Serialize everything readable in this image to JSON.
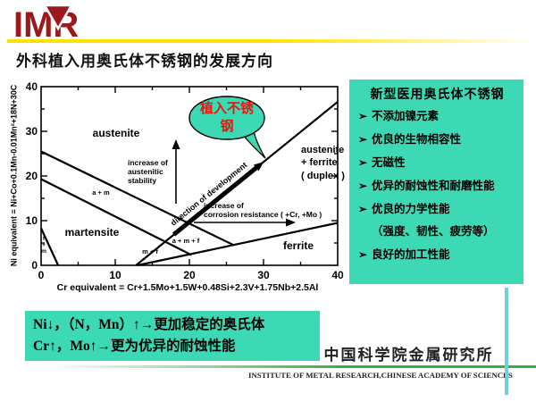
{
  "slide": {
    "logo_text": "IMR",
    "title": "外科植入用奥氏体不锈钢的发展方向",
    "colors": {
      "accent_teal": "#3cd9b4",
      "logo_red": "#9c1a1c",
      "yellow_bar": "#ffe300",
      "green_line": "#3ab03a",
      "cyan_line": "#70cfdd",
      "callout_text_red": "#e8170d"
    }
  },
  "chart_data": {
    "type": "line",
    "title": "Schaeffler phase diagram",
    "xlabel": "Cr equivalent = Cr+1.5Mo+1.5W+0.48Si+2.3V+1.75Nb+2.5Al",
    "ylabel": "Ni equivalent = Ni+Co+0.1Mn-0.01Mn²+18N+30C",
    "xlim": [
      0,
      40
    ],
    "ylim": [
      0,
      40
    ],
    "ticks_major": [
      0,
      10,
      20,
      30,
      40
    ],
    "ticks_minor": [
      5,
      15,
      25,
      35
    ],
    "grid": false,
    "boundaries": [
      {
        "name": "austenite-lower-boundary",
        "points": [
          [
            0,
            25.5
          ],
          [
            26,
            4.5
          ]
        ]
      },
      {
        "name": "martensite-upper-boundary",
        "points": [
          [
            0,
            19.3
          ],
          [
            20.3,
            2.3
          ]
        ]
      },
      {
        "name": "ferrite-martensite-triangle",
        "points": [
          [
            0,
            8.3
          ],
          [
            2.3,
            0
          ]
        ]
      },
      {
        "name": "duplex-boundary",
        "points": [
          [
            12.8,
            0
          ],
          [
            40,
            36.6
          ]
        ]
      },
      {
        "name": "ferrite-upper-boundary",
        "points": [
          [
            13,
            0
          ],
          [
            40,
            9.5
          ]
        ]
      },
      {
        "name": "development-arrow",
        "points": [
          [
            17.9,
            6.9
          ],
          [
            29,
            21.8
          ]
        ],
        "thick": true,
        "arrow": true
      }
    ],
    "regions": [
      {
        "label": "austenite",
        "at": [
          10,
          29.5
        ]
      },
      {
        "label": "a + m",
        "at": [
          8.2,
          15.7
        ]
      },
      {
        "label": "martensite",
        "at": [
          6.8,
          7.2
        ]
      },
      {
        "label": "f + m",
        "at": [
          0.5,
          2.5
        ]
      },
      {
        "label": "m + f",
        "at": [
          14.8,
          3.1
        ]
      },
      {
        "label": "a + m + f",
        "at": [
          19.5,
          5.4
        ]
      },
      {
        "label": "ferrite",
        "at": [
          34.5,
          4
        ]
      },
      {
        "label": "austenite + ferrite ( duplex )",
        "at": [
          36,
          22
        ]
      }
    ],
    "annotations": [
      {
        "text": "increase of austenitic stability",
        "arrow": "up",
        "arrow_from": [
          18.3,
          13.5
        ],
        "arrow_to": [
          18.3,
          27.5
        ]
      },
      {
        "text": "increase of corrosion resistance ( +Cr, +Mo )",
        "arrow": "right",
        "arrow_from": [
          20.8,
          9.5
        ],
        "arrow_to": [
          34.5,
          9.5
        ]
      },
      {
        "text": "direction of development",
        "arrow": "diagonal-along-duplex-boundary"
      }
    ],
    "callout": "植入不锈钢"
  },
  "chart_labels": {
    "yticks": [
      "40",
      "30",
      "20",
      "10",
      "0"
    ],
    "xticks": [
      "0",
      "10",
      "20",
      "30",
      "40"
    ],
    "xlabel": "Cr equivalent = Cr+1.5Mo+1.5W+0.48Si+2.3V+1.75Nb+2.5Al",
    "ylabel": "Ni equivalent = Ni+Co+0.1Mn-0.01Mn²+18N+30C",
    "region_austenite": "austenite",
    "region_am": "a + m",
    "region_martensite": "martensite",
    "region_fm": "f\n+\nm",
    "region_mf": "m + f",
    "region_amf": "a + m + f",
    "region_ferrite": "ferrite",
    "region_duplex": "austenite\n+ ferrite\n( duplex )",
    "ann_stability": "increase of\naustenitic\nstability",
    "ann_corrosion": "increase of\ncorrosion resistance ( +Cr, +Mo )",
    "ann_direction": "direction of development",
    "callout_text": "植入不锈\n钢"
  },
  "panel": {
    "title": "新型医用奥氏体不锈钢",
    "bullet_char": "➢",
    "items": [
      {
        "bullet": true,
        "text": "不添加镍元素"
      },
      {
        "bullet": true,
        "text": "优良的生物相容性"
      },
      {
        "bullet": true,
        "text": "无磁性"
      },
      {
        "bullet": true,
        "text": "优异的耐蚀性和耐磨性能"
      },
      {
        "bullet": true,
        "text": "优良的力学性能"
      },
      {
        "bullet": false,
        "text": "（强度、韧性、疲劳等）"
      },
      {
        "bullet": true,
        "text": "良好的加工性能"
      }
    ]
  },
  "summary_box": {
    "line1": "Ni↓，（N，Mn）↑→更加稳定的奥氏体",
    "line2": "Cr↑，Mo↑→更为优异的耐蚀性能"
  },
  "footer": {
    "institute_cn": "中国科学院金属研究所",
    "institute_en": "INSTITUTE OF METAL RESEARCH,CHINESE ACADEMY OF SCIENCES"
  }
}
